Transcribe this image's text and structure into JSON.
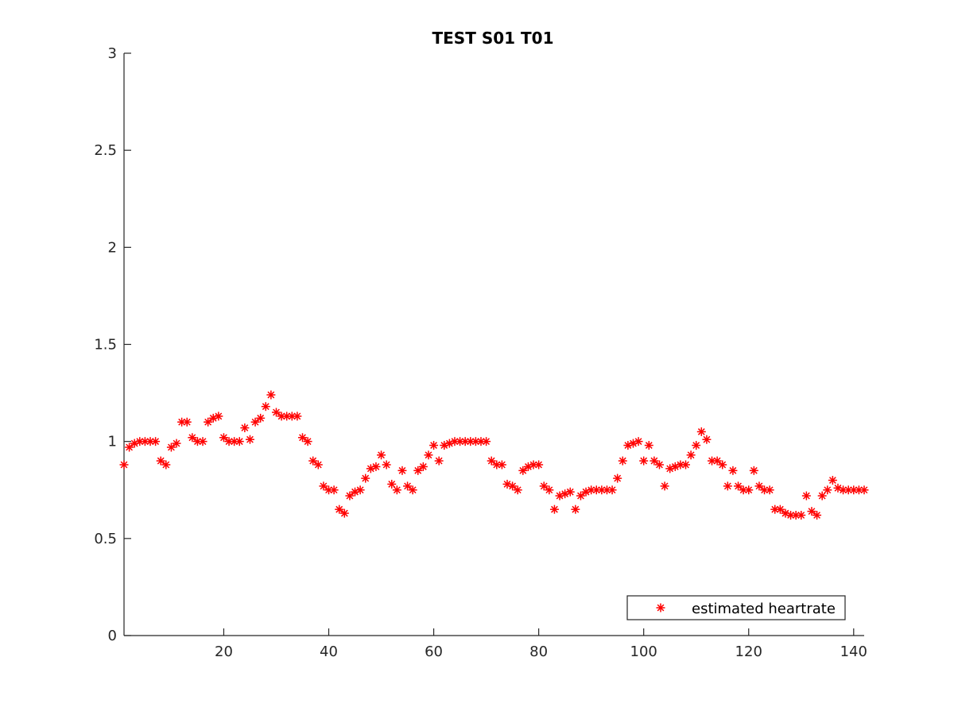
{
  "chart_data": {
    "type": "scatter",
    "title": "TEST S01 T01",
    "xlabel": "",
    "ylabel": "",
    "xlim": [
      1,
      142
    ],
    "ylim": [
      0,
      3
    ],
    "xticks": [
      20,
      40,
      60,
      80,
      100,
      120,
      140
    ],
    "yticks": [
      0,
      0.5,
      1,
      1.5,
      2,
      2.5,
      3
    ],
    "xtick_labels": [
      "20",
      "40",
      "60",
      "80",
      "100",
      "120",
      "140"
    ],
    "ytick_labels": [
      "0",
      "0.5",
      "1",
      "1.5",
      "2",
      "2.5",
      "3"
    ],
    "grid": false,
    "legend_position": "bottom-right",
    "marker": "asterisk",
    "series": [
      {
        "name": "estimated heartrate",
        "color": "#ff0000",
        "x": [
          1,
          2,
          3,
          4,
          5,
          6,
          7,
          8,
          9,
          10,
          11,
          12,
          13,
          14,
          15,
          16,
          17,
          18,
          19,
          20,
          21,
          22,
          23,
          24,
          25,
          26,
          27,
          28,
          29,
          30,
          31,
          32,
          33,
          34,
          35,
          36,
          37,
          38,
          39,
          40,
          41,
          42,
          43,
          44,
          45,
          46,
          47,
          48,
          49,
          50,
          51,
          52,
          53,
          54,
          55,
          56,
          57,
          58,
          59,
          60,
          61,
          62,
          63,
          64,
          65,
          66,
          67,
          68,
          69,
          70,
          71,
          72,
          73,
          74,
          75,
          76,
          77,
          78,
          79,
          80,
          81,
          82,
          83,
          84,
          85,
          86,
          87,
          88,
          89,
          90,
          91,
          92,
          93,
          94,
          95,
          96,
          97,
          98,
          99,
          100,
          101,
          102,
          103,
          104,
          105,
          106,
          107,
          108,
          109,
          110,
          111,
          112,
          113,
          114,
          115,
          116,
          117,
          118,
          119,
          120,
          121,
          122,
          123,
          124,
          125,
          126,
          127,
          128,
          129,
          130,
          131,
          132,
          133,
          134,
          135,
          136,
          137,
          138,
          139,
          140,
          141,
          142
        ],
        "y": [
          0.88,
          0.97,
          0.99,
          1.0,
          1.0,
          1.0,
          1.0,
          0.9,
          0.88,
          0.97,
          0.99,
          1.1,
          1.1,
          1.02,
          1.0,
          1.0,
          1.1,
          1.12,
          1.13,
          1.02,
          1.0,
          1.0,
          1.0,
          1.07,
          1.01,
          1.1,
          1.12,
          1.18,
          1.24,
          1.15,
          1.13,
          1.13,
          1.13,
          1.13,
          1.02,
          1.0,
          0.9,
          0.88,
          0.77,
          0.75,
          0.75,
          0.65,
          0.63,
          0.72,
          0.74,
          0.75,
          0.81,
          0.86,
          0.87,
          0.93,
          0.88,
          0.78,
          0.75,
          0.85,
          0.77,
          0.75,
          0.85,
          0.87,
          0.93,
          0.98,
          0.9,
          0.98,
          0.99,
          1.0,
          1.0,
          1.0,
          1.0,
          1.0,
          1.0,
          1.0,
          0.9,
          0.88,
          0.88,
          0.78,
          0.77,
          0.75,
          0.85,
          0.87,
          0.88,
          0.88,
          0.77,
          0.75,
          0.65,
          0.72,
          0.73,
          0.74,
          0.65,
          0.72,
          0.74,
          0.75,
          0.75,
          0.75,
          0.75,
          0.75,
          0.81,
          0.9,
          0.98,
          0.99,
          1.0,
          0.9,
          0.98,
          0.9,
          0.88,
          0.77,
          0.86,
          0.87,
          0.88,
          0.88,
          0.93,
          0.98,
          1.05,
          1.01,
          0.9,
          0.9,
          0.88,
          0.77,
          0.85,
          0.77,
          0.75,
          0.75,
          0.85,
          0.77,
          0.75,
          0.75,
          0.65,
          0.65,
          0.63,
          0.62,
          0.62,
          0.62,
          0.72,
          0.64,
          0.62,
          0.72,
          0.75,
          0.8,
          0.76,
          0.75,
          0.75,
          0.75,
          0.75,
          0.75
        ]
      }
    ]
  }
}
